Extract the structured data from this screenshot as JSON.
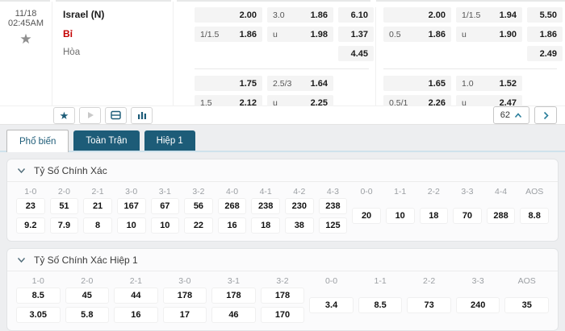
{
  "match": {
    "date": "11/18",
    "time": "02:45AM",
    "home": "Israel (N)",
    "away": "Bỉ",
    "draw_label": "Hòa"
  },
  "odds": {
    "groups": [
      {
        "blocks": [
          {
            "hdp": [
              {
                "label": "",
                "price": "2.00"
              },
              {
                "label": "1/1.5",
                "price": "1.86"
              }
            ],
            "ou": [
              {
                "label": "3.0",
                "price": "1.86"
              },
              {
                "label": "u",
                "price": "1.98"
              }
            ],
            "x12": [
              "6.10",
              "1.37",
              "4.45"
            ]
          },
          {
            "hdp": [
              {
                "label": "",
                "price": "1.75"
              },
              {
                "label": "1.5",
                "price": "2.12"
              }
            ],
            "ou": [
              {
                "label": "2.5/3",
                "price": "1.64"
              },
              {
                "label": "u",
                "price": "2.25"
              }
            ],
            "x12": []
          }
        ]
      },
      {
        "blocks": [
          {
            "hdp": [
              {
                "label": "",
                "price": "2.00"
              },
              {
                "label": "0.5",
                "price": "1.86"
              }
            ],
            "ou": [
              {
                "label": "1/1.5",
                "price": "1.94"
              },
              {
                "label": "u",
                "price": "1.90"
              }
            ],
            "x12": [
              "5.50",
              "1.86",
              "2.49"
            ]
          },
          {
            "hdp": [
              {
                "label": "",
                "price": "1.65"
              },
              {
                "label": "0.5/1",
                "price": "2.26"
              }
            ],
            "ou": [
              {
                "label": "1.0",
                "price": "1.52"
              },
              {
                "label": "u",
                "price": "2.47"
              }
            ],
            "x12": []
          }
        ]
      }
    ]
  },
  "toolbar": {
    "market_count": "62"
  },
  "tabs": [
    {
      "label": "Phổ biến",
      "active": true
    },
    {
      "label": "Toàn Trận",
      "active": false
    },
    {
      "label": "Hiệp 1",
      "active": false
    }
  ],
  "sections": [
    {
      "title": "Tỷ Số Chính Xác",
      "columns": [
        {
          "score": "1-0",
          "values": [
            "23",
            "9.2"
          ]
        },
        {
          "score": "2-0",
          "values": [
            "51",
            "7.9"
          ]
        },
        {
          "score": "2-1",
          "values": [
            "21",
            "8"
          ]
        },
        {
          "score": "3-0",
          "values": [
            "167",
            "10"
          ]
        },
        {
          "score": "3-1",
          "values": [
            "67",
            "10"
          ]
        },
        {
          "score": "3-2",
          "values": [
            "56",
            "22"
          ]
        },
        {
          "score": "4-0",
          "values": [
            "268",
            "16"
          ]
        },
        {
          "score": "4-1",
          "values": [
            "238",
            "18"
          ]
        },
        {
          "score": "4-2",
          "values": [
            "230",
            "38"
          ]
        },
        {
          "score": "4-3",
          "values": [
            "238",
            "125"
          ]
        },
        {
          "score": "0-0",
          "values": [
            "20"
          ]
        },
        {
          "score": "1-1",
          "values": [
            "10"
          ]
        },
        {
          "score": "2-2",
          "values": [
            "18"
          ]
        },
        {
          "score": "3-3",
          "values": [
            "70"
          ]
        },
        {
          "score": "4-4",
          "values": [
            "288"
          ]
        },
        {
          "score": "AOS",
          "values": [
            "8.8"
          ]
        }
      ]
    },
    {
      "title": "Tỷ Số Chính Xác Hiệp 1",
      "columns": [
        {
          "score": "1-0",
          "values": [
            "8.5",
            "3.05"
          ]
        },
        {
          "score": "2-0",
          "values": [
            "45",
            "5.8"
          ]
        },
        {
          "score": "2-1",
          "values": [
            "44",
            "16"
          ]
        },
        {
          "score": "3-0",
          "values": [
            "178",
            "17"
          ]
        },
        {
          "score": "3-1",
          "values": [
            "178",
            "46"
          ]
        },
        {
          "score": "3-2",
          "values": [
            "178",
            "170"
          ]
        },
        {
          "score": "0-0",
          "values": [
            "3.4"
          ]
        },
        {
          "score": "1-1",
          "values": [
            "8.5"
          ]
        },
        {
          "score": "2-2",
          "values": [
            "73"
          ]
        },
        {
          "score": "3-3",
          "values": [
            "240"
          ]
        },
        {
          "score": "AOS",
          "values": [
            "35"
          ]
        }
      ]
    }
  ],
  "colors": {
    "accent_teal": "#1d5c78",
    "away_red": "#c40000",
    "tab_underline": "#cfe2ec"
  }
}
